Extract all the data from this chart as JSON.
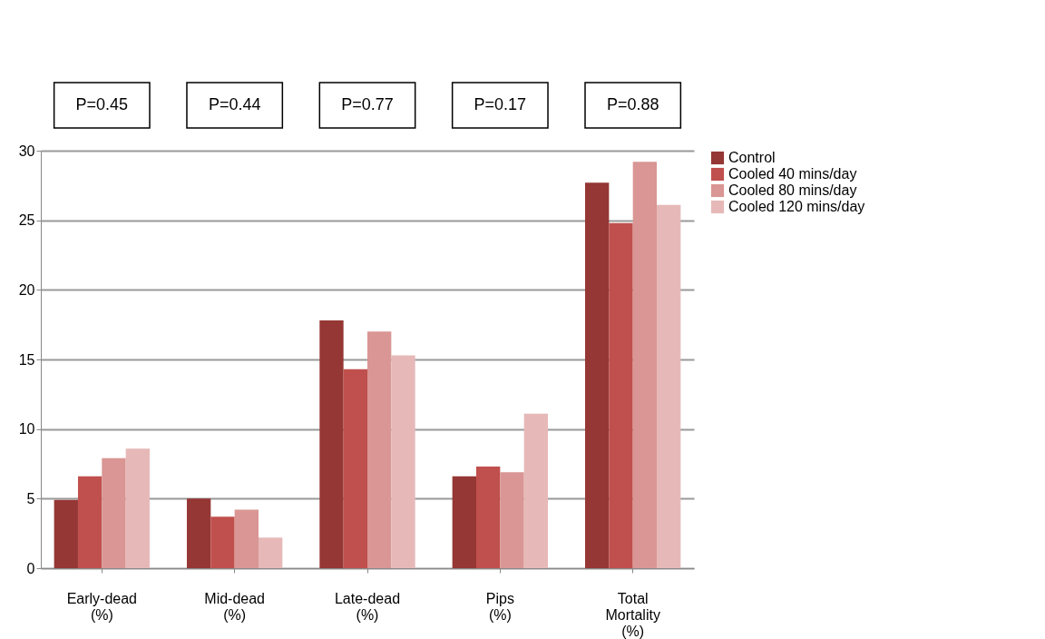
{
  "chart_data": {
    "type": "bar",
    "categories": [
      "Early-dead (%)",
      "Mid-dead (%)",
      "Late-dead (%)",
      "Pips (%)",
      "Total Mortality (%)"
    ],
    "series": [
      {
        "name": "Control",
        "color": "#953735",
        "values": [
          4.9,
          5.0,
          17.8,
          6.6,
          27.7
        ]
      },
      {
        "name": "Cooled 40 mins/day",
        "color": "#c0504d",
        "values": [
          6.6,
          3.7,
          14.3,
          7.3,
          24.8
        ]
      },
      {
        "name": "Cooled 80 mins/day",
        "color": "#d99694",
        "values": [
          7.9,
          4.2,
          17.0,
          6.9,
          29.2
        ]
      },
      {
        "name": "Cooled 120 mins/day",
        "color": "#e6b9b8",
        "values": [
          8.6,
          2.2,
          15.3,
          11.1,
          26.1
        ]
      }
    ],
    "ylim": [
      0,
      30
    ],
    "yticks": [
      0,
      5,
      10,
      15,
      20,
      25,
      30
    ],
    "grid": "y",
    "legend": "right",
    "annotations": [
      "P=0.45",
      "P=0.44",
      "P=0.77",
      "P=0.17",
      "P=0.88"
    ]
  }
}
